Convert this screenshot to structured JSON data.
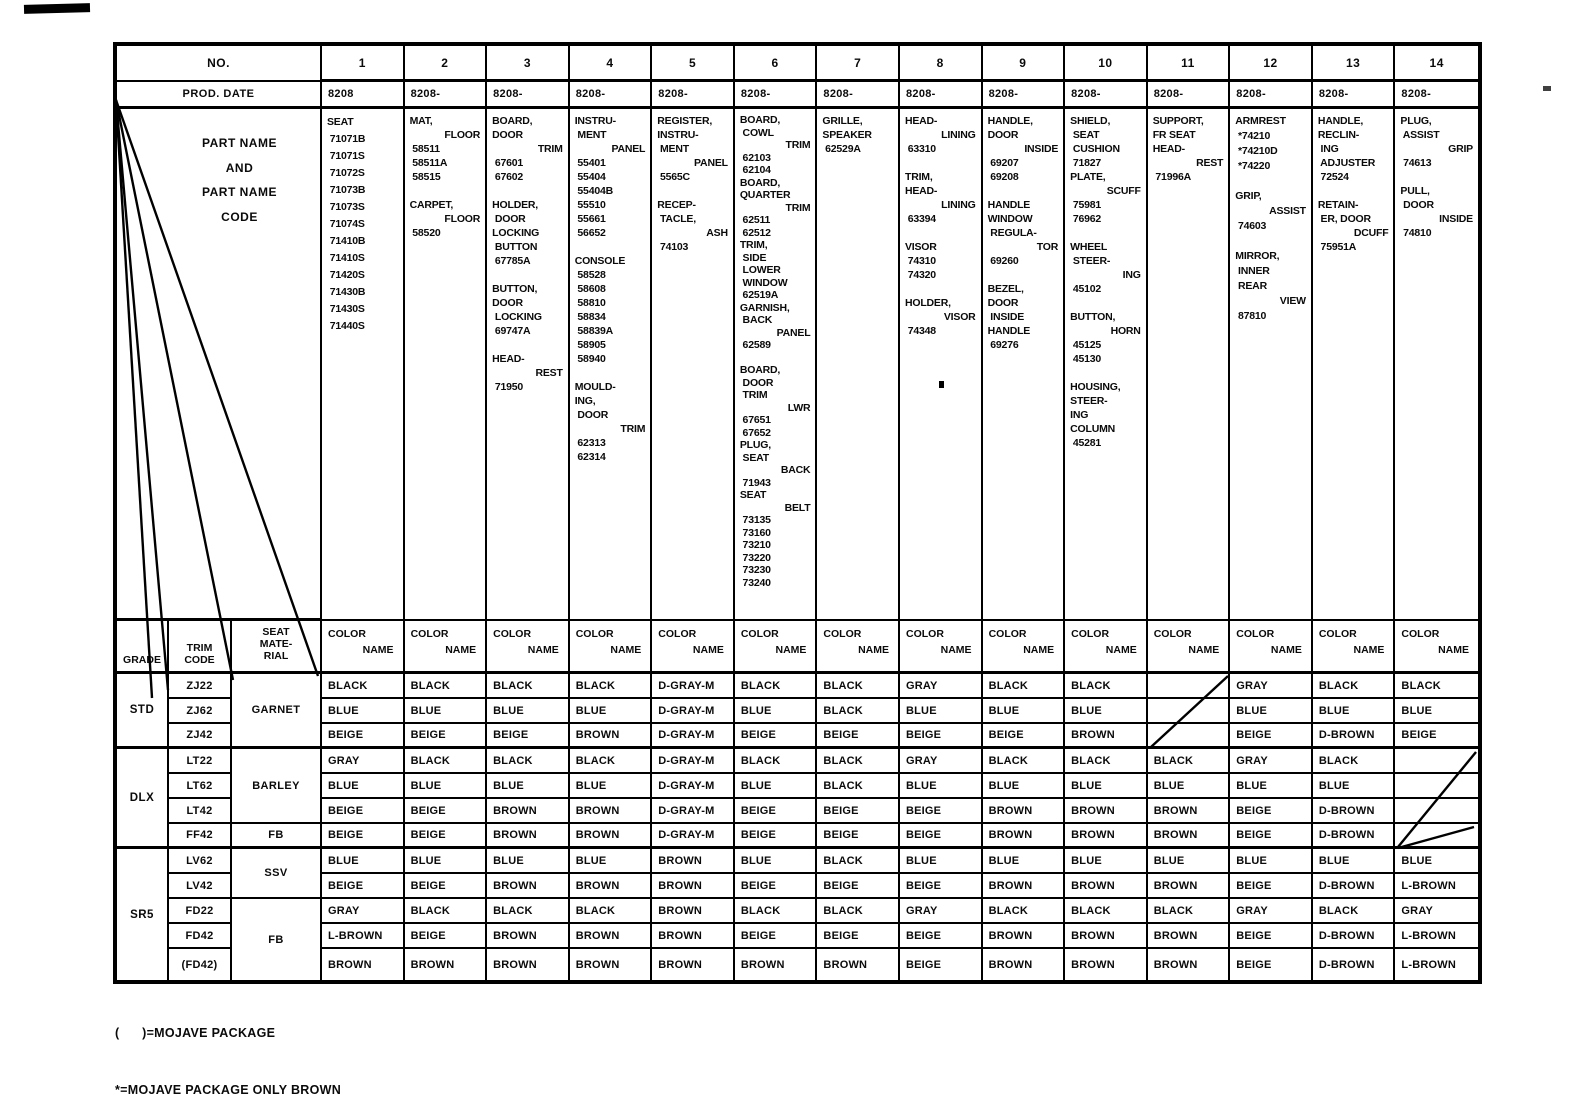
{
  "page": {
    "background": "#ffffff",
    "ink": "#000000"
  },
  "table": {
    "no_label": "NO.",
    "prod_date_label": "PROD. DATE",
    "column_numbers": [
      "1",
      "2",
      "3",
      "4",
      "5",
      "6",
      "7",
      "8",
      "9",
      "10",
      "11",
      "12",
      "13",
      "14"
    ],
    "prod_dates": [
      "8208",
      "8208-",
      "8208-",
      "8208-",
      "8208-",
      "8208-",
      "8208-",
      "8208-",
      "8208-",
      "8208-",
      "8208-",
      "8208-",
      "8208-",
      "8208-"
    ],
    "part_name_header_lines": [
      "PART NAME",
      "AND",
      "PART NAME",
      "CODE"
    ],
    "part_columns": [
      [
        "SEAT",
        " 71071B",
        " 71071S",
        " 71072S",
        " 71073B",
        " 71073S",
        " 71074S",
        " 71410B",
        " 71410S",
        " 71420S",
        " 71430B",
        " 71430S",
        " 71440S"
      ],
      [
        "MAT,",
        ">FLOOR",
        " 58511",
        " 58511A",
        " 58515",
        "",
        "CARPET,",
        ">FLOOR",
        " 58520"
      ],
      [
        "BOARD,",
        "DOOR",
        ">TRIM",
        " 67601",
        " 67602",
        "",
        "HOLDER,",
        " DOOR",
        "LOCKING",
        " BUTTON",
        " 67785A",
        "",
        "BUTTON,",
        "DOOR",
        " LOCKING",
        " 69747A",
        "",
        "HEAD-",
        ">REST",
        " 71950"
      ],
      [
        "INSTRU-",
        " MENT",
        ">PANEL",
        " 55401",
        " 55404",
        " 55404B",
        " 55510",
        " 55661",
        " 56652",
        "",
        "CONSOLE",
        " 58528",
        " 58608",
        " 58810",
        " 58834",
        " 58839A",
        " 58905",
        " 58940",
        "",
        "MOULD-",
        "ING,",
        " DOOR",
        ">TRIM",
        " 62313",
        " 62314"
      ],
      [
        "REGISTER,",
        "INSTRU-",
        " MENT",
        ">PANEL",
        " 5565C",
        "",
        "RECEP-",
        " TACLE,",
        ">ASH",
        " 74103"
      ],
      [
        "BOARD,",
        " COWL",
        ">TRIM",
        " 62103",
        " 62104",
        "BOARD,",
        "QUARTER",
        ">TRIM",
        " 62511",
        " 62512",
        "TRIM,",
        " SIDE",
        " LOWER",
        " WINDOW",
        " 62519A",
        "GARNISH,",
        " BACK",
        ">PANEL",
        " 62589",
        "",
        "BOARD,",
        " DOOR",
        " TRIM",
        ">LWR",
        " 67651",
        " 67652",
        "PLUG,",
        " SEAT",
        ">BACK",
        " 71943",
        "SEAT",
        ">BELT",
        " 73135",
        " 73160",
        " 73210",
        " 73220",
        " 73230",
        " 73240"
      ],
      [
        "GRILLE,",
        "SPEAKER",
        " 62529A"
      ],
      [
        "HEAD-",
        ">LINING",
        " 63310",
        "",
        "TRIM,",
        "HEAD-",
        ">LINING",
        " 63394",
        "",
        "VISOR",
        " 74310",
        " 74320",
        "",
        "HOLDER,",
        ">VISOR",
        " 74348"
      ],
      [
        "HANDLE,",
        "DOOR",
        ">INSIDE",
        " 69207",
        " 69208",
        "",
        "HANDLE",
        "WINDOW",
        " REGULA-",
        ">TOR",
        " 69260",
        "",
        "BEZEL,",
        "DOOR",
        " INSIDE",
        "HANDLE",
        " 69276"
      ],
      [
        "SHIELD,",
        " SEAT",
        " CUSHION",
        " 71827",
        "PLATE,",
        ">SCUFF",
        " 75981",
        " 76962",
        "",
        "WHEEL",
        " STEER-",
        ">ING",
        " 45102",
        "",
        "BUTTON,",
        ">HORN",
        " 45125",
        " 45130",
        "",
        "HOUSING,",
        "STEER-",
        "ING",
        "COLUMN",
        " 45281"
      ],
      [
        "SUPPORT,",
        "FR SEAT",
        "HEAD-",
        ">REST",
        " 71996A"
      ],
      [
        "ARMREST",
        " *74210",
        " *74210D",
        " *74220",
        "",
        "GRIP,",
        ">ASSIST",
        " 74603",
        "",
        "MIRROR,",
        " INNER",
        " REAR",
        ">VIEW",
        " 87810"
      ],
      [
        "HANDLE,",
        "RECLIN-",
        " ING",
        " ADJUSTER",
        " 72524",
        "",
        "RETAIN-",
        " ER, DOOR",
        ">DCUFF",
        " 75951A"
      ],
      [
        "PLUG,",
        " ASSIST",
        ">GRIP",
        " 74613",
        "",
        "PULL,",
        " DOOR",
        ">INSIDE",
        " 74810"
      ]
    ],
    "color_name_header": {
      "line1": "COLOR",
      "line2": "NAME"
    },
    "grade_label": "GRADE",
    "trim_code_label": [
      "TRIM",
      "CODE"
    ],
    "seat_material_label": [
      "SEAT",
      "MATE-",
      "RIAL"
    ],
    "grade_groups": [
      {
        "label": "STD",
        "row_span": 3
      },
      {
        "label": "DLX",
        "row_span": 4
      },
      {
        "label": "SR5",
        "row_span": 5
      }
    ],
    "seat_materials": [
      {
        "label": "GARNET",
        "row_span": 3
      },
      {
        "label": "BARLEY",
        "row_span": 3
      },
      {
        "label": "FB",
        "row_span": 1
      },
      {
        "label": "SSV",
        "row_span": 2
      },
      {
        "label": "FB",
        "row_span": 3
      }
    ],
    "rows": [
      {
        "trim_code": "ZJ22",
        "colors": [
          "BLACK",
          "BLACK",
          "BLACK",
          "BLACK",
          "D-GRAY-M",
          "BLACK",
          "BLACK",
          "GRAY",
          "BLACK",
          "BLACK",
          "",
          "GRAY",
          "BLACK",
          "BLACK"
        ]
      },
      {
        "trim_code": "ZJ62",
        "colors": [
          "BLUE",
          "BLUE",
          "BLUE",
          "BLUE",
          "D-GRAY-M",
          "BLUE",
          "BLACK",
          "BLUE",
          "BLUE",
          "BLUE",
          "",
          "BLUE",
          "BLUE",
          "BLUE"
        ]
      },
      {
        "trim_code": "ZJ42",
        "colors": [
          "BEIGE",
          "BEIGE",
          "BEIGE",
          "BROWN",
          "D-GRAY-M",
          "BEIGE",
          "BEIGE",
          "BEIGE",
          "BEIGE",
          "BROWN",
          "",
          "BEIGE",
          "D-BROWN",
          "BEIGE"
        ]
      },
      {
        "trim_code": "LT22",
        "colors": [
          "GRAY",
          "BLACK",
          "BLACK",
          "BLACK",
          "D-GRAY-M",
          "BLACK",
          "BLACK",
          "GRAY",
          "BLACK",
          "BLACK",
          "BLACK",
          "GRAY",
          "BLACK",
          ""
        ]
      },
      {
        "trim_code": "LT62",
        "colors": [
          "BLUE",
          "BLUE",
          "BLUE",
          "BLUE",
          "D-GRAY-M",
          "BLUE",
          "BLACK",
          "BLUE",
          "BLUE",
          "BLUE",
          "BLUE",
          "BLUE",
          "BLUE",
          ""
        ]
      },
      {
        "trim_code": "LT42",
        "colors": [
          "BEIGE",
          "BEIGE",
          "BROWN",
          "BROWN",
          "D-GRAY-M",
          "BEIGE",
          "BEIGE",
          "BEIGE",
          "BROWN",
          "BROWN",
          "BROWN",
          "BEIGE",
          "D-BROWN",
          ""
        ]
      },
      {
        "trim_code": "FF42",
        "colors": [
          "BEIGE",
          "BEIGE",
          "BROWN",
          "BROWN",
          "D-GRAY-M",
          "BEIGE",
          "BEIGE",
          "BEIGE",
          "BROWN",
          "BROWN",
          "BROWN",
          "BEIGE",
          "D-BROWN",
          ""
        ]
      },
      {
        "trim_code": "LV62",
        "colors": [
          "BLUE",
          "BLUE",
          "BLUE",
          "BLUE",
          "BROWN",
          "BLUE",
          "BLACK",
          "BLUE",
          "BLUE",
          "BLUE",
          "BLUE",
          "BLUE",
          "BLUE",
          "BLUE"
        ]
      },
      {
        "trim_code": "LV42",
        "colors": [
          "BEIGE",
          "BEIGE",
          "BROWN",
          "BROWN",
          "BROWN",
          "BEIGE",
          "BEIGE",
          "BEIGE",
          "BROWN",
          "BROWN",
          "BROWN",
          "BEIGE",
          "D-BROWN",
          "L-BROWN"
        ]
      },
      {
        "trim_code": "FD22",
        "colors": [
          "GRAY",
          "BLACK",
          "BLACK",
          "BLACK",
          "BROWN",
          "BLACK",
          "BLACK",
          "GRAY",
          "BLACK",
          "BLACK",
          "BLACK",
          "GRAY",
          "BLACK",
          "GRAY"
        ]
      },
      {
        "trim_code": "FD42",
        "colors": [
          "L-BROWN",
          "BEIGE",
          "BROWN",
          "BROWN",
          "BROWN",
          "BEIGE",
          "BEIGE",
          "BEIGE",
          "BROWN",
          "BROWN",
          "BROWN",
          "BEIGE",
          "D-BROWN",
          "L-BROWN"
        ]
      },
      {
        "trim_code": "(FD42)",
        "colors": [
          "BROWN",
          "BROWN",
          "BROWN",
          "BROWN",
          "BROWN",
          "BROWN",
          "BROWN",
          "BEIGE",
          "BROWN",
          "BROWN",
          "BROWN",
          "BEIGE",
          "D-BROWN",
          "L-BROWN"
        ]
      }
    ]
  },
  "footnotes": [
    "(      )=MOJAVE PACKAGE",
    "*=MOJAVE PACKAGE ONLY BROWN"
  ]
}
